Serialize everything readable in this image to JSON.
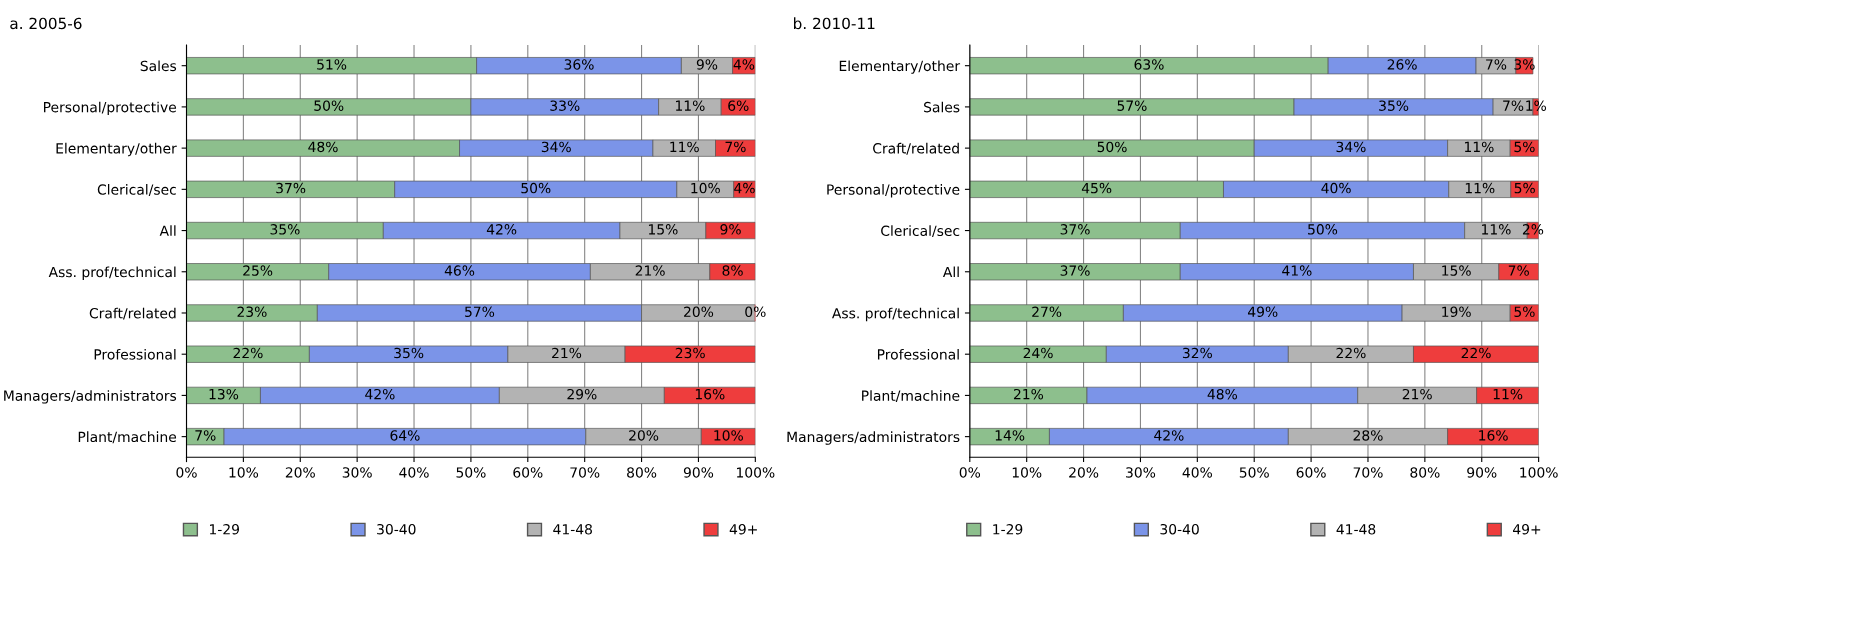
{
  "chart_data": [
    {
      "type": "bar",
      "orientation": "horizontal",
      "stacked": true,
      "title": "a. 2005-6",
      "categories": [
        "Sales",
        "Personal/protective",
        "Elementary/other",
        "Clerical/sec",
        "All",
        "Ass. prof/technical",
        "Craft/related",
        "Professional",
        "Managers/administrators",
        "Plant/machine"
      ],
      "series": [
        {
          "name": "1-29",
          "color": "#8dbf8d",
          "values": [
            51,
            50,
            48,
            36.6,
            34.6,
            25,
            23,
            21.6,
            13,
            6.6
          ],
          "value_labels": [
            "51%",
            "50%",
            "48%",
            "37%",
            "35%",
            "25%",
            "23%",
            "22%",
            "13%",
            "7%"
          ]
        },
        {
          "name": "30-40",
          "color": "#7b94e8",
          "values": [
            36,
            33,
            34,
            49.6,
            41.6,
            46,
            57,
            34.9,
            42,
            63.6
          ],
          "value_labels": [
            "36%",
            "33%",
            "34%",
            "50%",
            "42%",
            "46%",
            "57%",
            "35%",
            "42%",
            "64%"
          ]
        },
        {
          "name": "41-48",
          "color": "#b3b3b3",
          "values": [
            9,
            11,
            11,
            10,
            15.1,
            21,
            20,
            20.6,
            29,
            20.3
          ],
          "value_labels": [
            "9%",
            "11%",
            "11%",
            "10%",
            "15%",
            "21%",
            "20%",
            "21%",
            "29%",
            "20%"
          ]
        },
        {
          "name": "49+",
          "color": "#ee3d3d",
          "values": [
            4,
            6,
            7,
            3.8,
            8.7,
            8,
            0,
            22.9,
            16,
            9.5
          ],
          "value_labels": [
            "4%",
            "6%",
            "7%",
            "4%",
            "9%",
            "8%",
            "0%",
            "23%",
            "16%",
            "10%"
          ]
        }
      ],
      "xlim": [
        0,
        100
      ],
      "xticks": [
        {
          "value": 0,
          "label": "0%"
        },
        {
          "value": 10,
          "label": "10%"
        },
        {
          "value": 20,
          "label": "20%"
        },
        {
          "value": 30,
          "label": "30%"
        },
        {
          "value": 40,
          "label": "40%"
        },
        {
          "value": 50,
          "label": "50%"
        },
        {
          "value": 60,
          "label": "60%"
        },
        {
          "value": 70,
          "label": "70%"
        },
        {
          "value": 80,
          "label": "80%"
        },
        {
          "value": 90,
          "label": "90%"
        },
        {
          "value": 100,
          "label": "100%"
        }
      ],
      "grid": "x",
      "legend": "bottom"
    },
    {
      "type": "bar",
      "orientation": "horizontal",
      "stacked": true,
      "title": "b. 2010-11",
      "categories": [
        "Elementary/other",
        "Sales",
        "Craft/related",
        "Personal/protective",
        "Clerical/sec",
        "All",
        "Ass. prof/technical",
        "Professional",
        "Plant/machine",
        "Managers/administrators"
      ],
      "series": [
        {
          "name": "1-29",
          "color": "#8dbf8d",
          "values": [
            63,
            57,
            50,
            44.6,
            37,
            37,
            27,
            24,
            20.6,
            14
          ],
          "value_labels": [
            "63%",
            "57%",
            "50%",
            "45%",
            "37%",
            "37%",
            "27%",
            "24%",
            "21%",
            "14%"
          ]
        },
        {
          "name": "30-40",
          "color": "#7b94e8",
          "values": [
            26,
            35,
            34,
            39.6,
            50,
            41,
            49,
            32,
            47.6,
            42
          ],
          "value_labels": [
            "26%",
            "35%",
            "34%",
            "40%",
            "50%",
            "41%",
            "49%",
            "32%",
            "48%",
            "42%"
          ]
        },
        {
          "name": "41-48",
          "color": "#b3b3b3",
          "values": [
            7,
            7,
            11,
            10.9,
            11,
            15,
            19,
            22,
            20.9,
            28
          ],
          "value_labels": [
            "7%",
            "7%",
            "11%",
            "11%",
            "11%",
            "15%",
            "19%",
            "22%",
            "21%",
            "28%"
          ]
        },
        {
          "name": "49+",
          "color": "#ee3d3d",
          "values": [
            3,
            1,
            5,
            4.9,
            2,
            7,
            5,
            22,
            10.9,
            16
          ],
          "value_labels": [
            "3%",
            "1%",
            "5%",
            "5%",
            "2%",
            "7%",
            "5%",
            "22%",
            "11%",
            "16%"
          ]
        }
      ],
      "xlim": [
        0,
        100
      ],
      "xticks": [
        {
          "value": 0,
          "label": "0%"
        },
        {
          "value": 10,
          "label": "10%"
        },
        {
          "value": 20,
          "label": "20%"
        },
        {
          "value": 30,
          "label": "30%"
        },
        {
          "value": 40,
          "label": "40%"
        },
        {
          "value": 50,
          "label": "50%"
        },
        {
          "value": 60,
          "label": "60%"
        },
        {
          "value": 70,
          "label": "70%"
        },
        {
          "value": 80,
          "label": "80%"
        },
        {
          "value": 90,
          "label": "90%"
        },
        {
          "value": 100,
          "label": "100%"
        }
      ],
      "grid": "x",
      "legend": "bottom"
    }
  ]
}
